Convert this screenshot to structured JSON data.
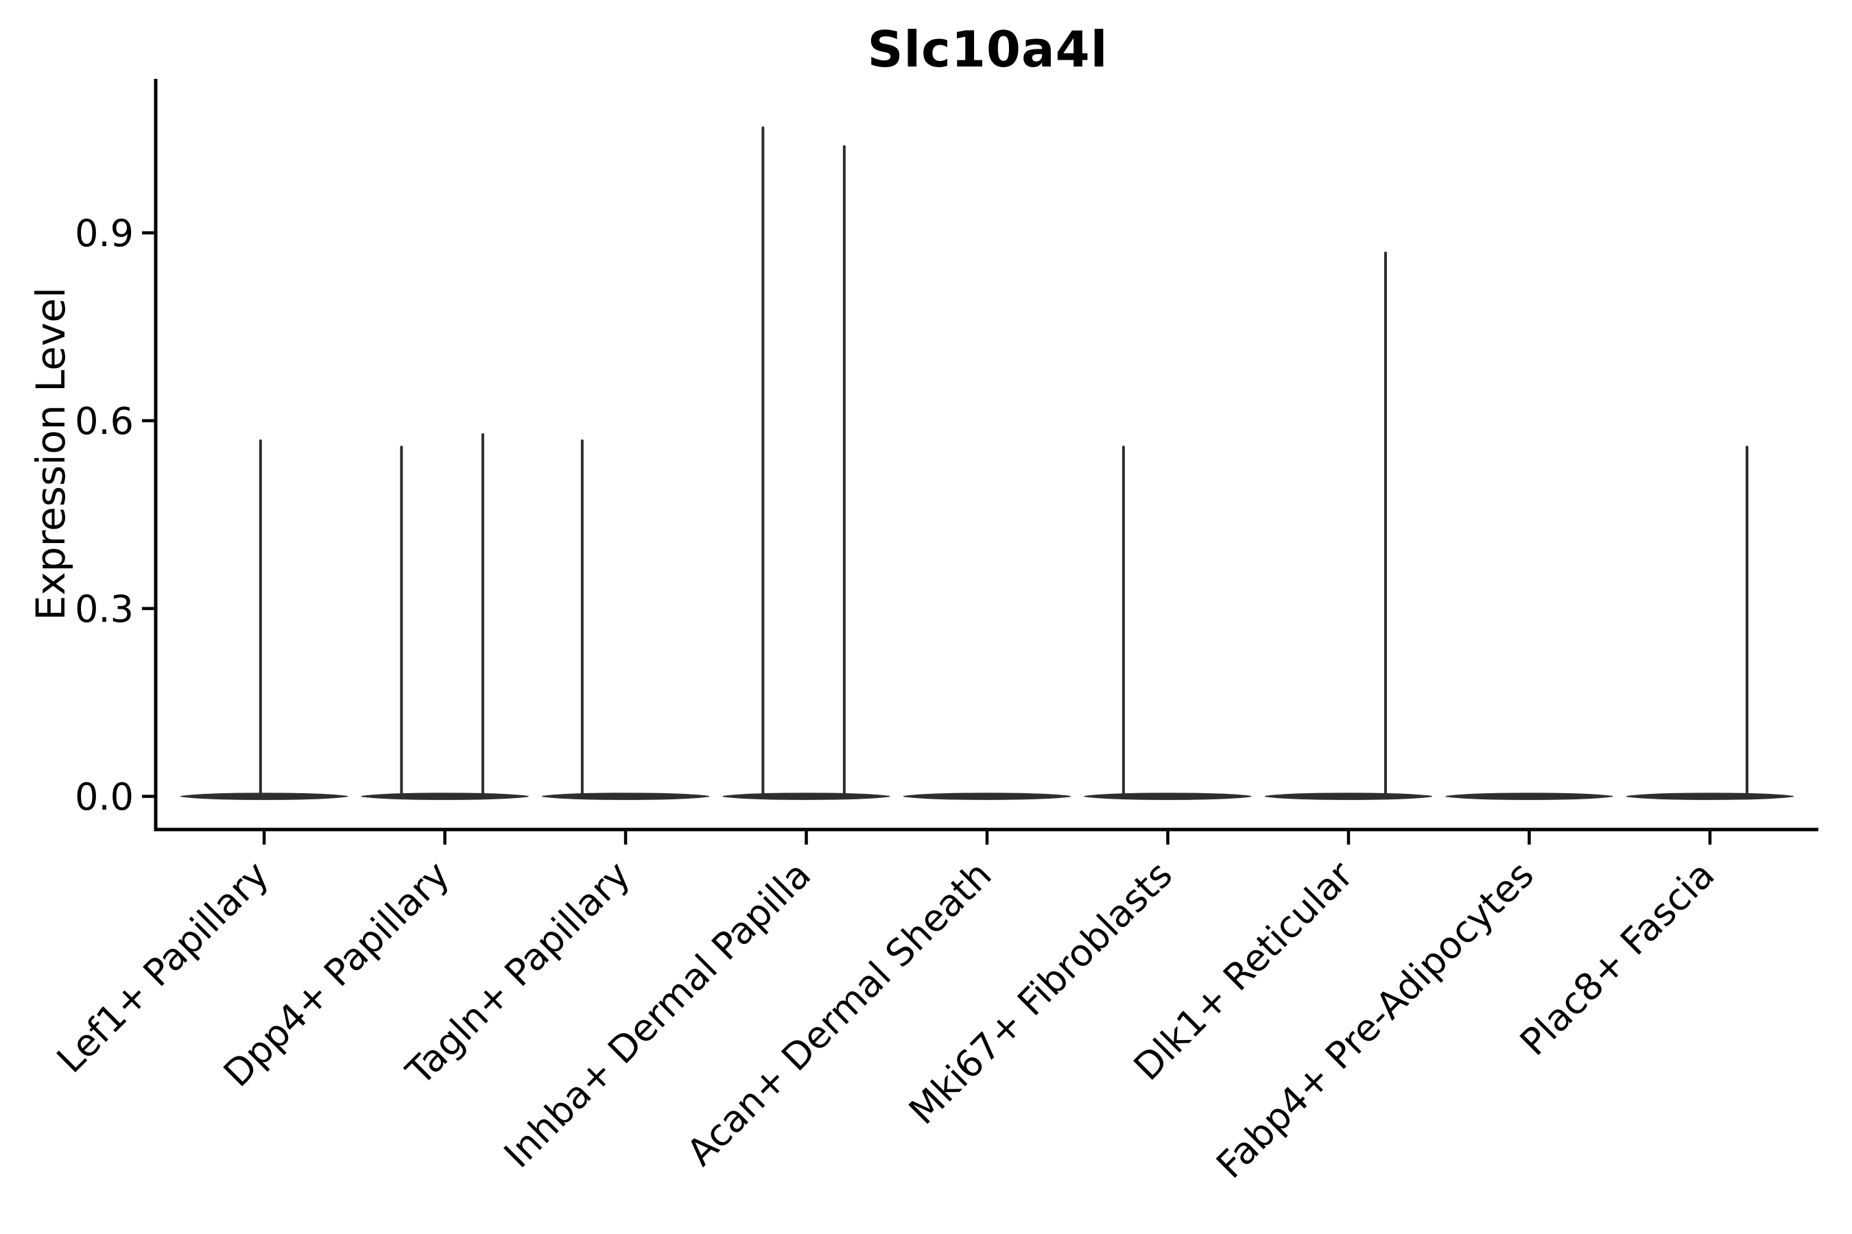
{
  "figure": {
    "background": "#ffffff"
  },
  "chart_data": {
    "type": "violin",
    "title": "Slc10a4l",
    "ylabel": "Expression Level",
    "xlabel": "",
    "grid": false,
    "legend": "none",
    "ylim": [
      -0.053,
      1.146
    ],
    "yticks": [
      0.0,
      0.3,
      0.6,
      0.9
    ],
    "ytick_labels": [
      "0.0",
      "0.3",
      "0.6",
      "0.9"
    ],
    "categories": [
      "Lef1+ Papillary",
      "Dpp4+ Papillary",
      "Tagln+ Papillary",
      "Inhba+ Dermal Papilla",
      "Acan+ Dermal Sheath",
      "Mki67+ Fibroblasts",
      "Dlk1+ Reticular",
      "Fabp4+ Pre-Adipocytes",
      "Plac8+ Fascia"
    ],
    "violins": [
      {
        "category": "Lef1+ Papillary",
        "baseline_value": 0.0,
        "spikes": [
          {
            "x_offset": -0.02,
            "value": 0.57
          }
        ]
      },
      {
        "category": "Dpp4+ Papillary",
        "baseline_value": 0.0,
        "spikes": [
          {
            "x_offset": -0.24,
            "value": 0.56
          },
          {
            "x_offset": 0.21,
            "value": 0.58
          }
        ]
      },
      {
        "category": "Tagln+ Papillary",
        "baseline_value": 0.0,
        "spikes": [
          {
            "x_offset": -0.24,
            "value": 0.57
          }
        ]
      },
      {
        "category": "Inhba+ Dermal Papilla",
        "baseline_value": 0.0,
        "spikes": [
          {
            "x_offset": -0.24,
            "value": 1.07
          },
          {
            "x_offset": 0.21,
            "value": 1.04
          }
        ]
      },
      {
        "category": "Acan+ Dermal Sheath",
        "baseline_value": 0.0,
        "spikes": []
      },
      {
        "category": "Mki67+ Fibroblasts",
        "baseline_value": 0.0,
        "spikes": [
          {
            "x_offset": -0.245,
            "value": 0.56
          }
        ]
      },
      {
        "category": "Dlk1+ Reticular",
        "baseline_value": 0.0,
        "spikes": [
          {
            "x_offset": 0.205,
            "value": 0.87
          }
        ]
      },
      {
        "category": "Fabp4+ Pre-Adipocytes",
        "baseline_value": 0.0,
        "spikes": []
      },
      {
        "category": "Plac8+ Fascia",
        "baseline_value": 0.0,
        "spikes": [
          {
            "x_offset": 0.205,
            "value": 0.56
          }
        ]
      }
    ],
    "colors": {
      "violin": "#2e2e2e",
      "axis": "#000000",
      "text": "#000000"
    }
  }
}
